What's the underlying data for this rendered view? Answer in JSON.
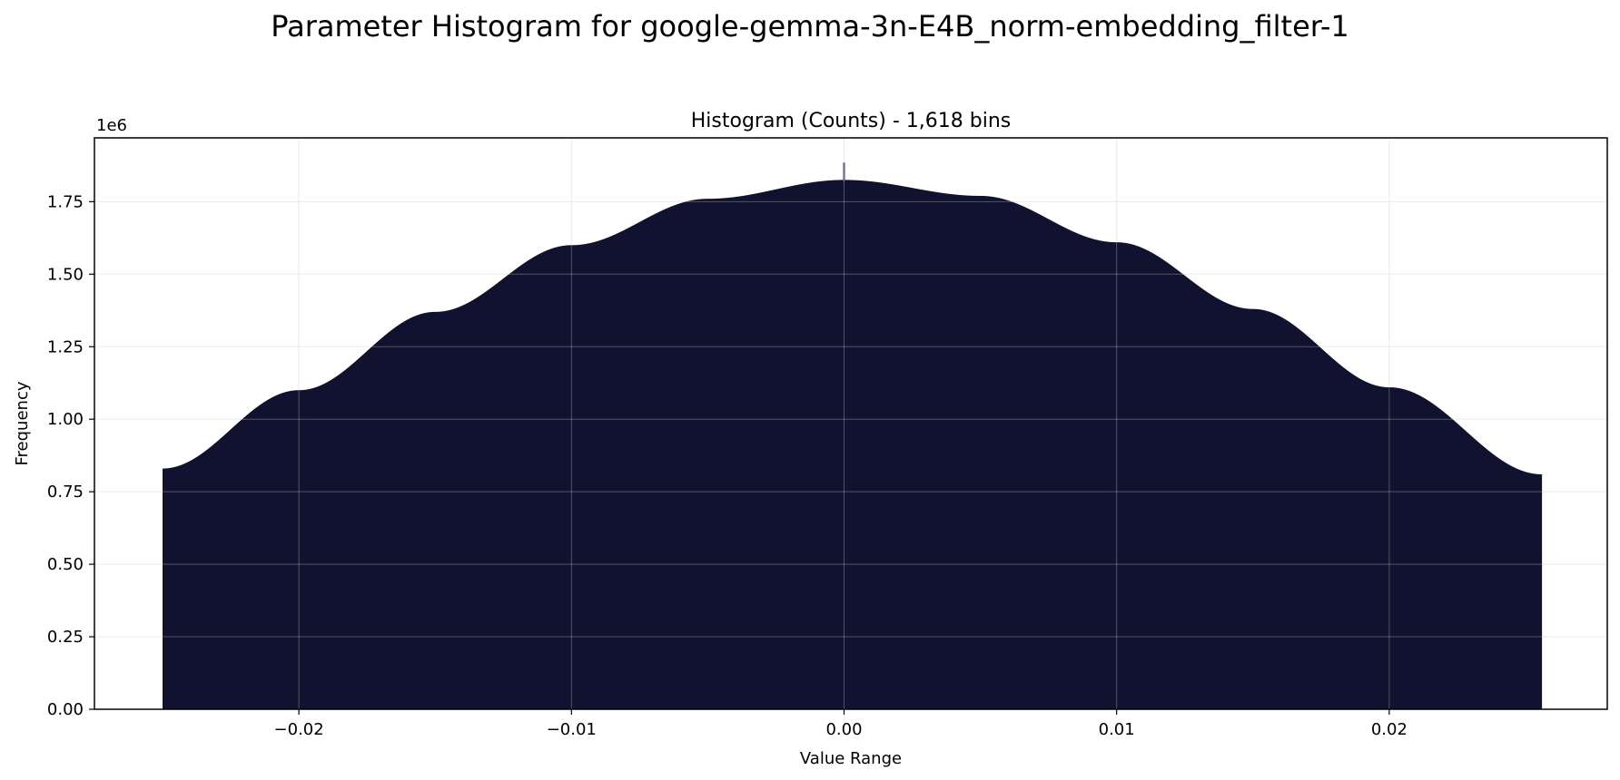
{
  "figure": {
    "suptitle": "Parameter Histogram for google-gemma-3n-E4B_norm-embedding_filter-1"
  },
  "chart_data": {
    "type": "bar",
    "title": "Histogram (Counts) - 1,618 bins",
    "xlabel": "Value Range",
    "ylabel": "Frequency",
    "y_offset_label": "1e6",
    "y_multiplier": 1000000,
    "xlim": [
      -0.0275,
      0.028
    ],
    "ylim": [
      0,
      1.97
    ],
    "x_ticks": [
      -0.02,
      -0.01,
      0.0,
      0.01,
      0.02
    ],
    "x_tick_labels": [
      "−0.02",
      "−0.01",
      "0.00",
      "0.01",
      "0.02"
    ],
    "y_ticks": [
      0.0,
      0.25,
      0.5,
      0.75,
      1.0,
      1.25,
      1.5,
      1.75
    ],
    "y_tick_labels": [
      "0.00",
      "0.25",
      "0.50",
      "0.75",
      "1.00",
      "1.25",
      "1.50",
      "1.75"
    ],
    "grid": true,
    "bar_color": "#080a28",
    "spike_color": "#3a3d66",
    "bins": 1618,
    "bin_range": [
      -0.025,
      0.0256
    ],
    "envelope": {
      "x": [
        -0.025,
        -0.02,
        -0.015,
        -0.01,
        -0.005,
        0.0,
        0.005,
        0.01,
        0.015,
        0.02,
        0.0256
      ],
      "y": [
        0.83,
        1.1,
        1.37,
        1.6,
        1.76,
        1.825,
        1.77,
        1.61,
        1.38,
        1.11,
        0.81
      ]
    },
    "peaks": [
      {
        "x": 0.0,
        "y": 1.885
      }
    ]
  }
}
